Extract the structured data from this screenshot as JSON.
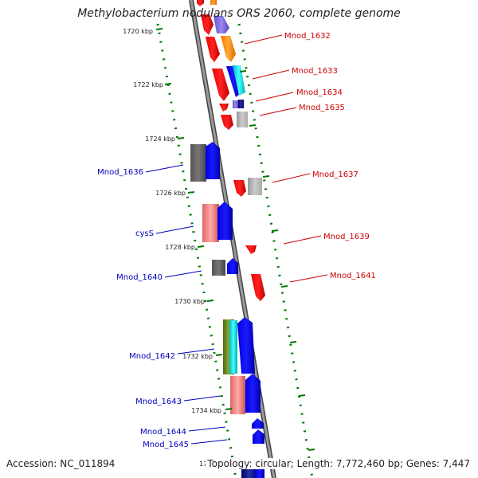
{
  "header": {
    "title": "Methylobacterium nodulans ORS 2060, complete genome"
  },
  "footer": {
    "accession": "Accession: NC_011894",
    "topology": "Topology: circular; Length: 7,772,460 bp; Genes: 7,447",
    "clipped_label": "17"
  },
  "colors": {
    "forward_label": "#cc0000",
    "reverse_label": "#0000bb",
    "scale_tick": "#007700",
    "backbone": "#888888"
  },
  "scale": {
    "unit": "kbp",
    "ticks": [
      "1720 kbp",
      "1722 kbp",
      "1724 kbp",
      "1726 kbp",
      "1728 kbp",
      "1730 kbp",
      "1732 kbp",
      "1734 kbp"
    ]
  },
  "genes": {
    "forward": [
      "Mnod_1632",
      "Mnod_1633",
      "Mnod_1634",
      "Mnod_1635",
      "Mnod_1637",
      "Mnod_1639",
      "Mnod_1641"
    ],
    "reverse": [
      "Mnod_1636",
      "cysS",
      "Mnod_1640",
      "Mnod_1642",
      "Mnod_1643",
      "Mnod_1644",
      "Mnod_1645"
    ]
  }
}
